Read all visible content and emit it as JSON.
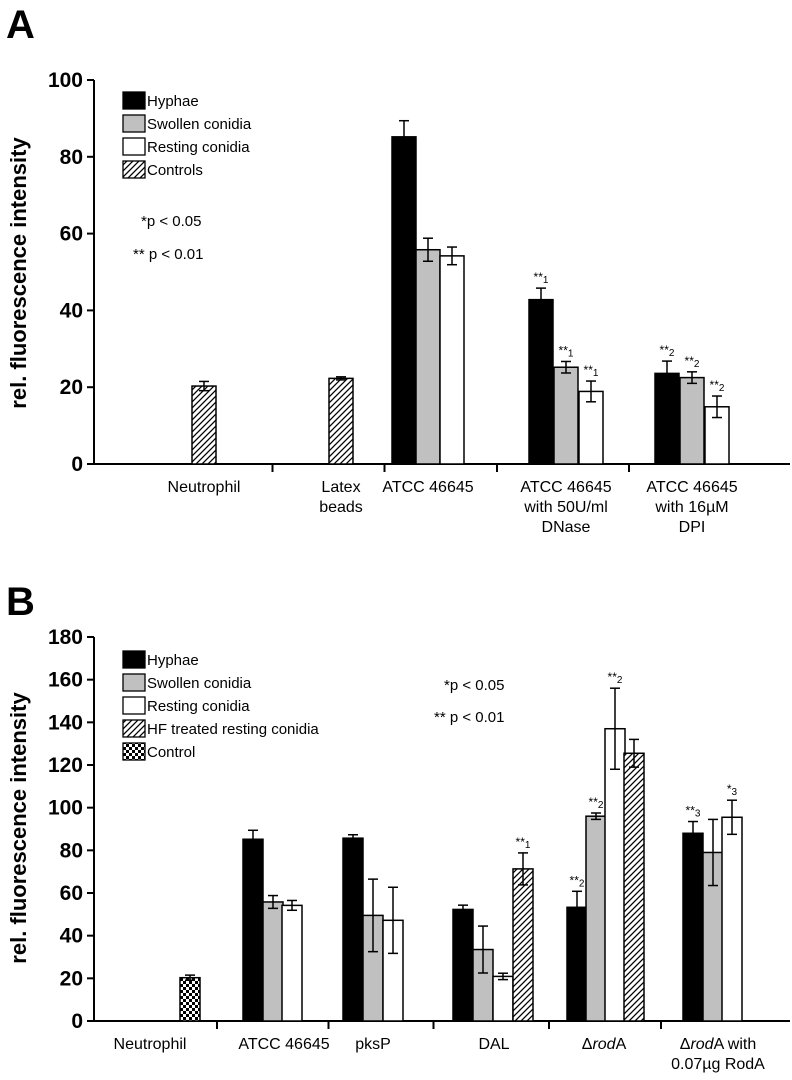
{
  "colors": {
    "hyphae": "#000000",
    "swollen": "#c0c0c0",
    "resting": "#ffffff",
    "axis": "#000000"
  },
  "chart_data": [
    {
      "panel_label": "A",
      "type": "bar",
      "ylabel": "rel. fluorescence intensity",
      "ylim": [
        0,
        100
      ],
      "yticks": [
        0,
        20,
        40,
        60,
        80,
        100
      ],
      "legend": [
        {
          "label": "Hyphae",
          "pattern": "solid-black"
        },
        {
          "label": "Swollen conidia",
          "pattern": "solid-gray"
        },
        {
          "label": "Resting conidia",
          "pattern": "white"
        },
        {
          "label": "Controls",
          "pattern": "hatch"
        }
      ],
      "pvalue_notes": [
        "*p < 0.05",
        "** p < 0.01"
      ],
      "categories": [
        {
          "label": [
            "Neutrophil"
          ],
          "bars": [
            {
              "series": "Controls",
              "pattern": "hatch",
              "value": 20.3,
              "err": 1.2
            }
          ]
        },
        {
          "label": [
            "Latex",
            "beads"
          ],
          "bars": [
            {
              "series": "Controls",
              "pattern": "hatch",
              "value": 22.3,
              "err": 0.4
            }
          ]
        },
        {
          "label": [
            "ATCC 46645"
          ],
          "bars": [
            {
              "series": "Hyphae",
              "pattern": "solid-black",
              "value": 85.2,
              "err": 4.2
            },
            {
              "series": "Swollen conidia",
              "pattern": "solid-gray",
              "value": 55.8,
              "err": 3.0
            },
            {
              "series": "Resting conidia",
              "pattern": "white",
              "value": 54.2,
              "err": 2.3
            }
          ]
        },
        {
          "label": [
            "ATCC 46645",
            "with 50U/ml",
            "DNase"
          ],
          "bars": [
            {
              "series": "Hyphae",
              "pattern": "solid-black",
              "value": 42.8,
              "err": 3.0,
              "sig": "**",
              "sig_sub": "1"
            },
            {
              "series": "Swollen conidia",
              "pattern": "solid-gray",
              "value": 25.2,
              "err": 1.5,
              "sig": "**",
              "sig_sub": "1"
            },
            {
              "series": "Resting conidia",
              "pattern": "white",
              "value": 18.9,
              "err": 2.7,
              "sig": "**",
              "sig_sub": "1"
            }
          ]
        },
        {
          "label": [
            "ATCC 46645",
            "with 16µM",
            "DPI"
          ],
          "bars": [
            {
              "series": "Hyphae",
              "pattern": "solid-black",
              "value": 23.6,
              "err": 3.2,
              "sig": "**",
              "sig_sub": "2"
            },
            {
              "series": "Swollen conidia",
              "pattern": "solid-gray",
              "value": 22.5,
              "err": 1.5,
              "sig": "**",
              "sig_sub": "2"
            },
            {
              "series": "Resting conidia",
              "pattern": "white",
              "value": 14.9,
              "err": 2.8,
              "sig": "**",
              "sig_sub": "2"
            }
          ]
        }
      ]
    },
    {
      "panel_label": "B",
      "type": "bar",
      "ylabel": "rel. fluorescence intensity",
      "ylim": [
        0,
        180
      ],
      "yticks": [
        0,
        20,
        40,
        60,
        80,
        100,
        120,
        140,
        160,
        180
      ],
      "legend": [
        {
          "label": "Hyphae",
          "pattern": "solid-black"
        },
        {
          "label": "Swollen conidia",
          "pattern": "solid-gray"
        },
        {
          "label": "Resting conidia",
          "pattern": "white"
        },
        {
          "label": "HF treated resting conidia",
          "pattern": "hatch"
        },
        {
          "label": "Control",
          "pattern": "checker"
        }
      ],
      "pvalue_notes": [
        "*p < 0.05",
        "** p < 0.01"
      ],
      "categories": [
        {
          "label": [
            "Neutrophil"
          ],
          "bars": [
            {
              "series": "Control",
              "pattern": "checker",
              "value": 20.3,
              "err": 1.2
            }
          ]
        },
        {
          "label": [
            "ATCC 46645"
          ],
          "bars": [
            {
              "series": "Hyphae",
              "pattern": "solid-black",
              "value": 85.2,
              "err": 4.2
            },
            {
              "series": "Swollen conidia",
              "pattern": "solid-gray",
              "value": 55.8,
              "err": 3.0
            },
            {
              "series": "Resting conidia",
              "pattern": "white",
              "value": 54.2,
              "err": 2.3
            }
          ]
        },
        {
          "label": [
            "pksP"
          ],
          "bars": [
            {
              "series": "Hyphae",
              "pattern": "solid-black",
              "value": 85.7,
              "err": 1.6
            },
            {
              "series": "Swollen conidia",
              "pattern": "solid-gray",
              "value": 49.5,
              "err": 17.0
            },
            {
              "series": "Resting conidia",
              "pattern": "white",
              "value": 47.2,
              "err": 15.5
            }
          ]
        },
        {
          "label": [
            "DAL"
          ],
          "bars": [
            {
              "series": "Hyphae",
              "pattern": "solid-black",
              "value": 52.3,
              "err": 2.0
            },
            {
              "series": "Swollen conidia",
              "pattern": "solid-gray",
              "value": 33.5,
              "err": 11.0
            },
            {
              "series": "Resting conidia",
              "pattern": "white",
              "value": 20.9,
              "err": 1.5
            },
            {
              "series": "HF treated resting conidia",
              "pattern": "hatch",
              "value": 71.3,
              "err": 7.5,
              "sig": "**",
              "sig_sub": "1"
            }
          ]
        },
        {
          "label": [
            "ΔrodA"
          ],
          "label_rich": [
            [
              {
                "t": "Δ"
              },
              {
                "t": "rod",
                "i": true
              },
              {
                "t": "A"
              }
            ]
          ],
          "bars": [
            {
              "series": "Hyphae",
              "pattern": "solid-black",
              "value": 53.3,
              "err": 7.5,
              "sig": "**",
              "sig_sub": "2"
            },
            {
              "series": "Swollen conidia",
              "pattern": "solid-gray",
              "value": 96.0,
              "err": 1.5,
              "sig": "**",
              "sig_sub": "2"
            },
            {
              "series": "Resting conidia",
              "pattern": "white",
              "value": 137.0,
              "err": 19.0,
              "sig": "**",
              "sig_sub": "2"
            },
            {
              "series": "HF treated resting conidia",
              "pattern": "hatch",
              "value": 125.5,
              "err": 6.5
            }
          ]
        },
        {
          "label": [
            "ΔrodA with",
            "0.07µg RodA"
          ],
          "label_rich": [
            [
              {
                "t": "Δ"
              },
              {
                "t": "rod",
                "i": true
              },
              {
                "t": "A with"
              }
            ],
            [
              {
                "t": "0.07µg RodA"
              }
            ]
          ],
          "bars": [
            {
              "series": "Hyphae",
              "pattern": "solid-black",
              "value": 88.0,
              "err": 5.5,
              "sig": "**",
              "sig_sub": "3"
            },
            {
              "series": "Swollen conidia",
              "pattern": "solid-gray",
              "value": 79.0,
              "err": 15.5
            },
            {
              "series": "Resting conidia",
              "pattern": "white",
              "value": 95.5,
              "err": 8.0,
              "sig": "*",
              "sig_sub": "3"
            }
          ]
        }
      ]
    }
  ]
}
